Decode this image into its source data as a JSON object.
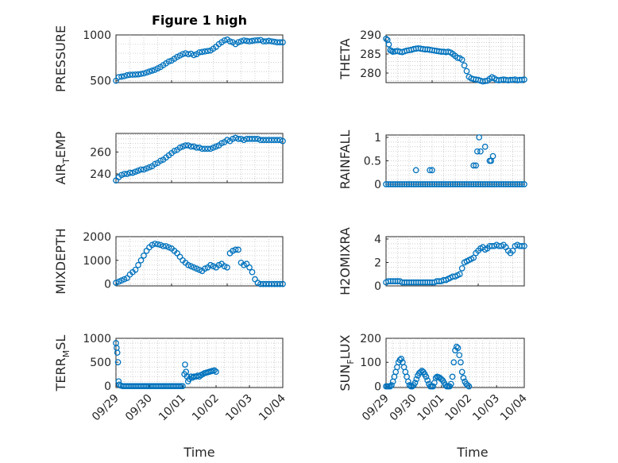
{
  "figure_title": "Figure 1 high",
  "x_axis_label": "Time",
  "x_tick_labels": [
    "09/29",
    "09/30",
    "10/01",
    "10/02",
    "10/03",
    "10/04"
  ],
  "marker_color": "#0072BD",
  "chart_data": [
    {
      "type": "scatter",
      "ylabel": "PRESSURE",
      "ylabel_sub": "",
      "ylim": [
        480,
        1000
      ],
      "yticks": [
        500,
        1000
      ],
      "grid": true,
      "x": [
        0.0,
        0.05,
        0.1,
        0.15,
        0.2,
        0.25,
        0.3,
        0.35,
        0.4,
        0.45,
        0.5,
        0.55,
        0.6,
        0.65,
        0.7,
        0.75,
        0.8,
        0.85,
        0.9,
        0.95,
        1.0,
        1.05,
        1.1,
        1.15,
        1.2,
        1.25,
        1.3,
        1.35,
        1.4,
        1.45,
        1.5,
        1.55,
        1.6,
        1.65,
        1.7,
        1.75,
        1.8,
        1.85,
        1.9,
        1.95,
        2.0,
        2.05,
        2.1,
        2.15,
        2.2,
        2.25,
        2.3,
        2.35,
        2.4,
        2.45,
        2.5,
        2.55,
        2.6,
        2.65,
        2.7,
        2.75,
        2.8,
        2.85,
        2.9,
        2.95,
        3.0
      ],
      "y": [
        500,
        540,
        545,
        550,
        560,
        565,
        566,
        568,
        570,
        575,
        580,
        590,
        600,
        610,
        620,
        635,
        650,
        670,
        690,
        710,
        720,
        740,
        760,
        775,
        790,
        800,
        790,
        795,
        780,
        790,
        810,
        815,
        820,
        825,
        830,
        850,
        870,
        900,
        920,
        940,
        950,
        930,
        920,
        900,
        920,
        930,
        940,
        935,
        930,
        935,
        940,
        942,
        945,
        930,
        930,
        935,
        930,
        925,
        920,
        920,
        920
      ],
      "values_note": ""
    },
    {
      "type": "scatter",
      "ylabel": "THETA",
      "ylabel_sub": "",
      "ylim": [
        277.5,
        290
      ],
      "yticks": [
        280,
        285,
        290
      ],
      "grid": true,
      "x": [
        0.0,
        0.03,
        0.06,
        0.09,
        0.12,
        0.15,
        0.2,
        0.25,
        0.3,
        0.35,
        0.4,
        0.45,
        0.5,
        0.55,
        0.6,
        0.65,
        0.7,
        0.75,
        0.8,
        0.85,
        0.9,
        0.95,
        1.0,
        1.05,
        1.1,
        1.15,
        1.2,
        1.25,
        1.3,
        1.35,
        1.4,
        1.45,
        1.5,
        1.55,
        1.6,
        1.65,
        1.7,
        1.75,
        1.8,
        1.85,
        1.9,
        1.95,
        2.0,
        2.05,
        2.1,
        2.15,
        2.2,
        2.25,
        2.3,
        2.35,
        2.4,
        2.45,
        2.5,
        2.55,
        2.6,
        2.65,
        2.7,
        2.75,
        2.8,
        2.85,
        2.9,
        2.95,
        3.0
      ],
      "y": [
        289,
        288.7,
        287.5,
        286,
        285.8,
        285.6,
        285.7,
        285.8,
        285.6,
        285.5,
        285.7,
        285.9,
        286.0,
        286.1,
        286.3,
        286.4,
        286.5,
        286.4,
        286.3,
        286.2,
        286.2,
        286.1,
        286.0,
        285.9,
        285.8,
        285.7,
        285.6,
        285.6,
        285.5,
        285.6,
        285.4,
        285.0,
        284.5,
        284.0,
        283.9,
        283.5,
        282.0,
        280.5,
        279.0,
        278.6,
        278.4,
        278.3,
        278.2,
        278.0,
        277.8,
        277.9,
        278.0,
        278.5,
        278.9,
        278.6,
        278.2,
        278.1,
        278.2,
        278.3,
        278.2,
        278.1,
        278.2,
        278.2,
        278.3,
        278.1,
        278.2,
        278.2,
        278.3
      ]
    },
    {
      "type": "scatter",
      "ylabel": "AIR",
      "ylabel_sub": "T",
      "ylabel_rest": "EMP",
      "ylim": [
        232,
        277
      ],
      "yticks": [
        240,
        260
      ],
      "grid": true,
      "x": [
        0.0,
        0.05,
        0.1,
        0.15,
        0.2,
        0.25,
        0.3,
        0.35,
        0.4,
        0.45,
        0.5,
        0.55,
        0.6,
        0.65,
        0.7,
        0.75,
        0.8,
        0.85,
        0.9,
        0.95,
        1.0,
        1.05,
        1.1,
        1.15,
        1.2,
        1.25,
        1.3,
        1.35,
        1.4,
        1.45,
        1.5,
        1.55,
        1.6,
        1.65,
        1.7,
        1.75,
        1.8,
        1.85,
        1.9,
        1.95,
        2.0,
        2.05,
        2.1,
        2.15,
        2.2,
        2.25,
        2.3,
        2.35,
        2.4,
        2.45,
        2.5,
        2.55,
        2.6,
        2.65,
        2.7,
        2.75,
        2.8,
        2.85,
        2.9,
        2.95,
        3.0
      ],
      "y": [
        234,
        237,
        239,
        240,
        240,
        241,
        241,
        242,
        243,
        244,
        244,
        245,
        246,
        247,
        249,
        250,
        252,
        253,
        255,
        257,
        259,
        261,
        262,
        264,
        265,
        266,
        266,
        265,
        265,
        264,
        264,
        263,
        263,
        263,
        263,
        264,
        265,
        266,
        268,
        269,
        271,
        270,
        272,
        273,
        272,
        272,
        271,
        272,
        272,
        272,
        272,
        272,
        271,
        271,
        271,
        271,
        271,
        271,
        271,
        271,
        270
      ]
    },
    {
      "type": "scatter",
      "ylabel": "RAINFALL",
      "ylabel_sub": "",
      "ylim": [
        0,
        1.05
      ],
      "yticks": [
        0,
        0.5,
        1
      ],
      "ytick_labels": [
        "0",
        "0.5",
        "1"
      ],
      "grid": true,
      "x": [
        0.0,
        0.05,
        0.1,
        0.15,
        0.2,
        0.25,
        0.3,
        0.35,
        0.4,
        0.45,
        0.5,
        0.55,
        0.6,
        0.65,
        0.7,
        0.75,
        0.8,
        0.85,
        0.9,
        0.95,
        1.0,
        1.05,
        1.1,
        1.15,
        1.2,
        1.25,
        1.3,
        1.35,
        1.4,
        1.45,
        1.5,
        1.55,
        1.6,
        1.65,
        1.7,
        1.75,
        1.8,
        1.85,
        1.9,
        1.95,
        2.0,
        2.05,
        2.1,
        2.15,
        2.2,
        2.25,
        2.3,
        2.35,
        2.4,
        2.45,
        2.5,
        2.55,
        2.6,
        2.65,
        2.7,
        2.75,
        2.8,
        2.85,
        2.9,
        2.95,
        3.0,
        0.65,
        0.95,
        1.0,
        1.9,
        1.95,
        1.98,
        2.02,
        2.05,
        2.15,
        2.25,
        2.28,
        2.32
      ],
      "y": [
        0,
        0,
        0,
        0,
        0,
        0,
        0,
        0,
        0,
        0,
        0,
        0,
        0,
        0,
        0,
        0,
        0,
        0,
        0,
        0,
        0,
        0,
        0,
        0,
        0,
        0,
        0,
        0,
        0,
        0,
        0,
        0,
        0,
        0,
        0,
        0,
        0,
        0,
        0,
        0,
        0,
        0,
        0,
        0,
        0,
        0,
        0,
        0,
        0,
        0,
        0,
        0,
        0,
        0,
        0,
        0,
        0,
        0,
        0,
        0,
        0,
        0.3,
        0.3,
        0.3,
        0.4,
        0.4,
        0.7,
        1.0,
        0.7,
        0.8,
        0.5,
        0.5,
        0.6
      ]
    },
    {
      "type": "scatter",
      "ylabel": "MIXDEPTH",
      "ylabel_sub": "",
      "ylim": [
        -80,
        2000
      ],
      "yticks": [
        0,
        1000,
        2000
      ],
      "grid": true,
      "x": [
        0.0,
        0.05,
        0.1,
        0.15,
        0.2,
        0.25,
        0.3,
        0.35,
        0.4,
        0.45,
        0.5,
        0.55,
        0.6,
        0.65,
        0.7,
        0.75,
        0.8,
        0.85,
        0.9,
        0.95,
        1.0,
        1.05,
        1.1,
        1.15,
        1.2,
        1.25,
        1.3,
        1.35,
        1.4,
        1.45,
        1.5,
        1.55,
        1.6,
        1.65,
        1.7,
        1.75,
        1.8,
        1.85,
        1.9,
        1.95,
        2.0,
        2.05,
        2.1,
        2.15,
        2.2,
        2.25,
        2.3,
        2.35,
        2.4,
        2.45,
        2.5,
        2.55,
        2.6,
        2.65,
        2.7,
        2.75,
        2.8,
        2.85,
        2.9,
        2.95,
        3.0
      ],
      "y": [
        50,
        100,
        150,
        200,
        250,
        400,
        500,
        600,
        800,
        1000,
        1200,
        1400,
        1550,
        1650,
        1700,
        1680,
        1650,
        1600,
        1600,
        1550,
        1500,
        1400,
        1300,
        1150,
        1000,
        900,
        800,
        750,
        700,
        650,
        600,
        550,
        650,
        700,
        800,
        750,
        700,
        800,
        850,
        750,
        700,
        1300,
        1400,
        1450,
        1450,
        900,
        800,
        850,
        700,
        500,
        200,
        50,
        0,
        0,
        0,
        0,
        0,
        0,
        0,
        0,
        0
      ]
    },
    {
      "type": "scatter",
      "ylabel": "H2OMIXRA",
      "ylabel_sub": "",
      "ylim": [
        0,
        4.2
      ],
      "yticks": [
        0,
        2,
        4
      ],
      "grid": true,
      "x": [
        0.0,
        0.05,
        0.1,
        0.15,
        0.2,
        0.25,
        0.3,
        0.35,
        0.4,
        0.45,
        0.5,
        0.55,
        0.6,
        0.65,
        0.7,
        0.75,
        0.8,
        0.85,
        0.9,
        0.95,
        1.0,
        1.05,
        1.1,
        1.15,
        1.2,
        1.25,
        1.3,
        1.35,
        1.4,
        1.45,
        1.5,
        1.55,
        1.6,
        1.65,
        1.7,
        1.75,
        1.8,
        1.85,
        1.9,
        1.95,
        2.0,
        2.05,
        2.1,
        2.15,
        2.2,
        2.25,
        2.3,
        2.35,
        2.4,
        2.45,
        2.5,
        2.55,
        2.6,
        2.65,
        2.7,
        2.75,
        2.8,
        2.85,
        2.9,
        2.95,
        3.0
      ],
      "y": [
        0.3,
        0.4,
        0.4,
        0.4,
        0.4,
        0.4,
        0.4,
        0.3,
        0.3,
        0.3,
        0.3,
        0.3,
        0.3,
        0.3,
        0.3,
        0.3,
        0.3,
        0.3,
        0.3,
        0.3,
        0.3,
        0.3,
        0.4,
        0.4,
        0.4,
        0.5,
        0.5,
        0.6,
        0.7,
        0.8,
        0.8,
        0.9,
        1.0,
        1.5,
        2.0,
        2.1,
        2.2,
        2.3,
        2.4,
        2.8,
        3.0,
        3.2,
        3.3,
        3.1,
        3.2,
        3.4,
        3.4,
        3.4,
        3.5,
        3.4,
        3.4,
        3.5,
        3.3,
        3.0,
        2.8,
        3.0,
        3.4,
        3.5,
        3.4,
        3.4,
        3.4
      ]
    },
    {
      "type": "scatter",
      "ylabel": "TERR",
      "ylabel_sub": "M",
      "ylabel_rest": "SL",
      "ylim": [
        -30,
        1000
      ],
      "yticks": [
        0,
        500,
        1000
      ],
      "grid": true,
      "x": [
        0.0,
        0.02,
        0.04,
        0.06,
        0.08,
        0.1,
        0.15,
        0.2,
        0.25,
        0.3,
        0.35,
        0.4,
        0.45,
        0.5,
        0.55,
        0.6,
        0.65,
        0.7,
        0.75,
        0.8,
        0.85,
        0.9,
        0.95,
        1.0,
        1.05,
        1.1,
        1.15,
        1.2,
        1.25,
        1.3,
        1.35,
        1.4,
        1.45,
        1.5,
        1.55,
        1.6,
        1.65,
        1.7,
        1.75,
        1.8,
        1.85,
        1.9,
        1.95,
        2.0,
        2.05,
        2.07,
        2.1,
        2.13,
        2.16,
        2.2,
        2.25,
        2.3,
        2.35,
        2.4,
        2.45,
        2.5,
        2.55,
        2.6,
        2.65,
        2.7,
        2.75,
        2.8,
        2.85,
        2.9,
        2.95,
        3.0
      ],
      "y": [
        900,
        800,
        700,
        500,
        100,
        30,
        10,
        0,
        0,
        0,
        0,
        0,
        0,
        0,
        0,
        0,
        0,
        0,
        0,
        0,
        0,
        0,
        0,
        0,
        0,
        0,
        0,
        0,
        0,
        0,
        0,
        0,
        0,
        0,
        0,
        0,
        0,
        0,
        0,
        0,
        0,
        0,
        0,
        0,
        250,
        450,
        300,
        200,
        100,
        150,
        200,
        180,
        200,
        200,
        220,
        200,
        230,
        250,
        270,
        280,
        290,
        300,
        310,
        320,
        330,
        300
      ]
    },
    {
      "type": "scatter",
      "ylabel": "SUN",
      "ylabel_sub": "F",
      "ylabel_rest": "LUX",
      "ylim": [
        -5,
        200
      ],
      "yticks": [
        0,
        100,
        200
      ],
      "grid": true,
      "x": [
        0.0,
        0.05,
        0.1,
        0.15,
        0.2,
        0.25,
        0.3,
        0.35,
        0.4,
        0.45,
        0.5,
        0.55,
        0.6,
        0.65,
        0.7,
        0.75,
        0.8,
        0.85,
        0.9,
        0.95,
        1.0,
        1.05,
        1.1,
        1.15,
        1.2,
        1.25,
        1.3,
        1.35,
        1.4,
        1.45,
        1.5,
        1.55,
        1.6,
        1.65,
        1.7,
        1.75,
        1.8,
        1.85,
        1.9,
        1.95,
        2.0,
        2.05,
        2.1,
        2.15,
        2.2,
        2.25,
        2.3,
        2.35,
        2.4,
        2.45,
        2.5,
        2.55,
        2.6,
        2.65,
        2.7,
        2.75,
        2.8,
        2.85,
        2.9,
        2.95,
        3.0
      ],
      "y": [
        0,
        0,
        0,
        0,
        5,
        20,
        40,
        60,
        80,
        100,
        110,
        115,
        100,
        80,
        60,
        40,
        20,
        5,
        0,
        0,
        5,
        15,
        30,
        45,
        55,
        60,
        65,
        60,
        50,
        40,
        25,
        10,
        0,
        0,
        0,
        15,
        35,
        40,
        38,
        35,
        30,
        25,
        15,
        5,
        0,
        0,
        0,
        10,
        40,
        100,
        150,
        165,
        160,
        130,
        100,
        60,
        35,
        20,
        10,
        5,
        0
      ]
    }
  ]
}
